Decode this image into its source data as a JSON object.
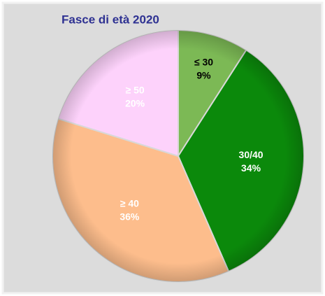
{
  "chart_data": {
    "type": "pie",
    "title": "Fasce di età 2020",
    "categories": [
      "≤ 30",
      "30/40",
      "≥ 40",
      "≥ 50"
    ],
    "values": [
      9,
      34,
      36,
      20
    ],
    "value_labels": [
      "9%",
      "34%",
      "36%",
      "20%"
    ],
    "colors": [
      "#7cb955",
      "#0b890b",
      "#fdbd8c",
      "#fdd2fb"
    ],
    "label_colors": [
      "#000000",
      "#ffffff",
      "#ffffff",
      "#ffffff"
    ]
  }
}
